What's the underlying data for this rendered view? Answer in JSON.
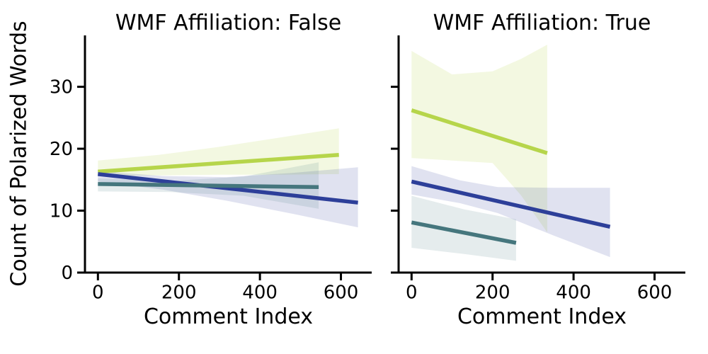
{
  "figure": {
    "background": "#ffffff",
    "axis_color": "#000000",
    "shared_ylabel": "Count of Polarized Words"
  },
  "chart_data": [
    {
      "type": "line",
      "title": "WMF Affiliation: False",
      "xlabel": "Comment Index",
      "ylabel": "Count of Polarized Words",
      "xlim": [
        -32,
        676
      ],
      "ylim": [
        0,
        38.3
      ],
      "xticks": [
        0,
        200,
        400,
        600
      ],
      "yticks": [
        0,
        10,
        20,
        30
      ],
      "ytick_labels_visible": true,
      "grid": false,
      "legend": "none",
      "series": [
        {
          "name": "yellow-green-trend",
          "color": "#b6d54b",
          "band_opacity": 0.17,
          "x": [
            0,
            595
          ],
          "y": [
            16.3,
            19.0
          ],
          "band_x": [
            0,
            150,
            300,
            450,
            595
          ],
          "band_hi": [
            18.1,
            19.0,
            20.3,
            21.8,
            23.3
          ],
          "band_lo": [
            15.6,
            15.7,
            15.8,
            15.8,
            15.9
          ]
        },
        {
          "name": "navy-blue-trend",
          "color": "#2d3f99",
          "band_opacity": 0.15,
          "x": [
            0,
            642
          ],
          "y": [
            15.9,
            11.3
          ],
          "band_x": [
            0,
            160,
            318,
            480,
            642
          ],
          "band_hi": [
            16.4,
            15.6,
            15.4,
            16.1,
            17.0
          ],
          "band_lo": [
            14.7,
            13.4,
            11.6,
            9.5,
            7.3
          ]
        },
        {
          "name": "teal-trend",
          "color": "#45767d",
          "band_opacity": 0.14,
          "x": [
            0,
            545
          ],
          "y": [
            14.3,
            13.8
          ],
          "band_x": [
            0,
            180,
            360,
            545
          ],
          "band_hi": [
            15.2,
            14.8,
            15.5,
            17.8
          ],
          "band_lo": [
            13.1,
            13.0,
            12.4,
            10.3
          ]
        }
      ]
    },
    {
      "type": "line",
      "title": "WMF Affiliation: True",
      "xlabel": "Comment Index",
      "ylabel": "Count of Polarized Words",
      "xlim": [
        -32,
        676
      ],
      "ylim": [
        0,
        38.3
      ],
      "xticks": [
        0,
        200,
        400,
        600
      ],
      "yticks": [
        0,
        10,
        20,
        30
      ],
      "ytick_labels_visible": false,
      "grid": false,
      "legend": "none",
      "series": [
        {
          "name": "yellow-green-trend",
          "color": "#b6d54b",
          "band_opacity": 0.17,
          "x": [
            0,
            335
          ],
          "y": [
            26.2,
            19.3
          ],
          "band_x": [
            0,
            100,
            200,
            270,
            335
          ],
          "band_hi": [
            35.8,
            32.0,
            32.5,
            34.5,
            36.8
          ],
          "band_lo": [
            18.5,
            18.1,
            17.7,
            12.5,
            6.5
          ]
        },
        {
          "name": "navy-blue-trend",
          "color": "#2d3f99",
          "band_opacity": 0.15,
          "x": [
            0,
            490
          ],
          "y": [
            14.7,
            7.4
          ],
          "band_x": [
            0,
            120,
            213,
            350,
            490
          ],
          "band_hi": [
            17.2,
            14.9,
            13.8,
            13.7,
            13.7
          ],
          "band_lo": [
            12.6,
            11.2,
            9.6,
            6.0,
            2.5
          ]
        },
        {
          "name": "teal-trend",
          "color": "#45767d",
          "band_opacity": 0.14,
          "x": [
            0,
            258
          ],
          "y": [
            8.1,
            4.8
          ],
          "band_x": [
            0,
            130,
            258
          ],
          "band_hi": [
            12.4,
            10.2,
            8.6
          ],
          "band_lo": [
            4.0,
            3.0,
            1.9
          ]
        }
      ]
    }
  ]
}
